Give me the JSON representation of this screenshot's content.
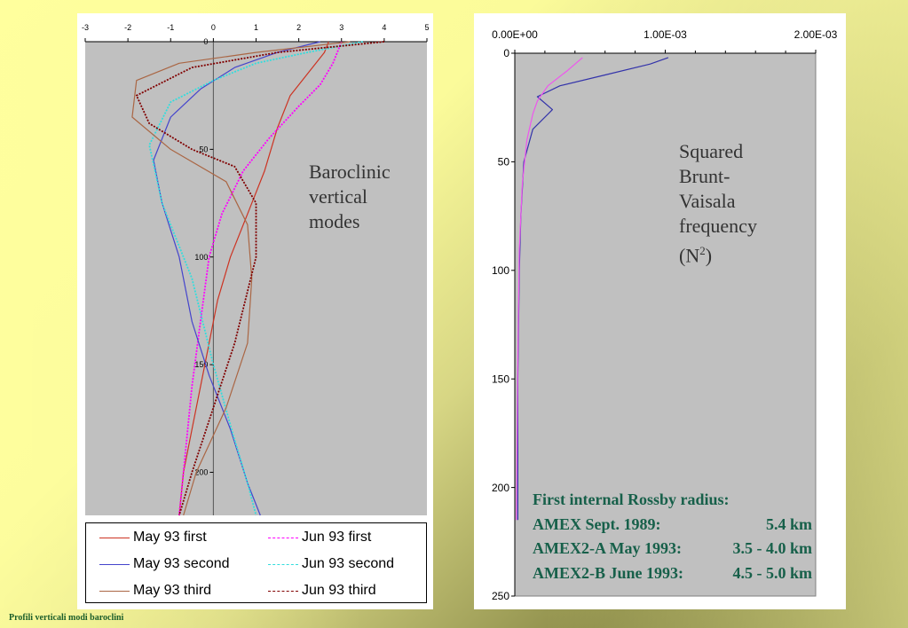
{
  "footer_text": "Profili verticali modi baroclini",
  "left_annotation": [
    "Baroclinic",
    "vertical",
    "modes"
  ],
  "right_annotation": [
    "Squared",
    "Brunt-",
    "Vaisala",
    "frequency",
    "(N",
    "2",
    ")"
  ],
  "rossby_box": {
    "title": "First internal Rossby radius:",
    "rows": [
      {
        "label": "AMEX  Sept. 1989:",
        "value": "5.4 km"
      },
      {
        "label": "AMEX2-A May 1993:",
        "value": "3.5 - 4.0 km"
      },
      {
        "label": "AMEX2-B June 1993:",
        "value": "4.5 - 5.0 km"
      }
    ]
  },
  "legend": [
    {
      "label": "May 93 first",
      "color": "#cc3322",
      "style": "solid"
    },
    {
      "label": "Jun 93 first",
      "color": "#ff00ff",
      "style": "dashed"
    },
    {
      "label": "May 93 second",
      "color": "#4444cc",
      "style": "solid"
    },
    {
      "label": "Jun 93 second",
      "color": "#33dddd",
      "style": "dashed"
    },
    {
      "label": "May 93 third",
      "color": "#aa6644",
      "style": "solid"
    },
    {
      "label": "Jun 93 third",
      "color": "#800000",
      "style": "dashed"
    }
  ],
  "chart_data": [
    {
      "type": "line",
      "title": "",
      "xlabel": "",
      "ylabel": "",
      "xlim": [
        -3,
        5
      ],
      "ylim": [
        0,
        220
      ],
      "y_inverted": true,
      "x_ticks": [
        "-3",
        "-2",
        "-1",
        "0",
        "1",
        "2",
        "3",
        "4",
        "5"
      ],
      "y_ticks": [
        "0",
        "50",
        "100",
        "150",
        "200"
      ],
      "plot_background": "#c0c0c0",
      "zero_line": true,
      "series": [
        {
          "name": "May 93 first",
          "color": "#cc3322",
          "style": "solid",
          "x": [
            2.7,
            2.6,
            2.2,
            1.8,
            1.5,
            1.2,
            0.8,
            0.4,
            0.1,
            -0.2,
            -0.5,
            -0.7,
            -0.8
          ],
          "y": [
            0,
            5,
            15,
            25,
            40,
            60,
            80,
            100,
            120,
            150,
            180,
            200,
            220
          ]
        },
        {
          "name": "Jun 93 first",
          "color": "#ff00ff",
          "style": "dashed",
          "x": [
            3.0,
            2.8,
            2.5,
            2.0,
            1.3,
            0.7,
            0.2,
            -0.1,
            -0.3,
            -0.5,
            -0.65,
            -0.8
          ],
          "y": [
            0,
            10,
            20,
            30,
            45,
            60,
            80,
            100,
            130,
            160,
            190,
            220
          ]
        },
        {
          "name": "May 93 second",
          "color": "#4444cc",
          "style": "solid",
          "x": [
            2.5,
            1.5,
            0.5,
            -0.3,
            -1.0,
            -1.4,
            -1.2,
            -0.8,
            -0.5,
            -0.1,
            0.4,
            0.8,
            1.1
          ],
          "y": [
            0,
            5,
            12,
            22,
            35,
            55,
            75,
            100,
            130,
            155,
            180,
            205,
            220
          ]
        },
        {
          "name": "Jun 93 second",
          "color": "#33dddd",
          "style": "dashed",
          "x": [
            3.5,
            2.2,
            1.0,
            0.0,
            -1.0,
            -1.5,
            -1.2,
            -0.5,
            0.0,
            0.5,
            0.8,
            1.0
          ],
          "y": [
            0,
            5,
            10,
            18,
            28,
            48,
            75,
            110,
            150,
            185,
            205,
            220
          ]
        },
        {
          "name": "May 93 third",
          "color": "#aa6644",
          "style": "solid",
          "x": [
            3.2,
            1.0,
            -0.8,
            -1.8,
            -1.9,
            -1.0,
            0.3,
            0.8,
            0.9,
            0.8,
            0.3,
            -0.4,
            -0.7
          ],
          "y": [
            0,
            5,
            10,
            18,
            35,
            50,
            65,
            85,
            110,
            140,
            170,
            200,
            220
          ]
        },
        {
          "name": "Jun 93 third",
          "color": "#800000",
          "style": "dashed",
          "x": [
            4.0,
            1.5,
            -0.5,
            -1.8,
            -1.5,
            -0.5,
            0.5,
            1.0,
            1.0,
            0.5,
            0.0,
            -0.5,
            -0.8
          ],
          "y": [
            0,
            5,
            12,
            25,
            38,
            50,
            58,
            75,
            100,
            140,
            170,
            200,
            220
          ]
        }
      ]
    },
    {
      "type": "line",
      "title": "",
      "xlabel": "",
      "ylabel": "",
      "xlim": [
        0,
        0.002
      ],
      "ylim": [
        0,
        250
      ],
      "y_inverted": true,
      "x_ticks": [
        "0.00E+00",
        "1.00E-03",
        "2.00E-03"
      ],
      "y_ticks": [
        "0",
        "50",
        "100",
        "150",
        "200",
        "250"
      ],
      "plot_background": "#c0c0c0",
      "series": [
        {
          "color": "#3333aa",
          "x": [
            0.00102,
            0.0009,
            0.0006,
            0.0003,
            0.00015,
            0.00025,
            0.00012,
            6e-05,
            4e-05,
            3e-05,
            2e-05,
            2e-05,
            2e-05
          ],
          "y": [
            2,
            5,
            10,
            15,
            20,
            26,
            35,
            50,
            75,
            100,
            150,
            200,
            215
          ]
        },
        {
          "color": "#ee55ee",
          "x": [
            0.00045,
            0.00035,
            0.00022,
            0.00015,
            0.00012,
            8e-05,
            5e-05,
            3e-05,
            2e-05,
            1e-05
          ],
          "y": [
            2,
            8,
            15,
            22,
            28,
            40,
            60,
            90,
            140,
            215
          ]
        }
      ]
    }
  ]
}
